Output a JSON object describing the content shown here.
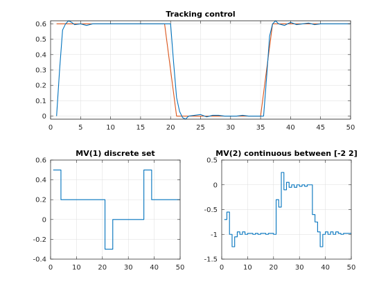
{
  "colors": {
    "blue": "#0072bd",
    "red": "#d95319",
    "axis": "#262626",
    "grid": "#dcdcdc"
  },
  "chart_data": [
    {
      "id": "tracking",
      "type": "line",
      "title": "Tracking control",
      "xlim": [
        0,
        50
      ],
      "ylim": [
        -0.02,
        0.62
      ],
      "xticks": [
        0,
        5,
        10,
        15,
        20,
        25,
        30,
        35,
        40,
        45,
        50
      ],
      "yticks": [
        0,
        0.1,
        0.2,
        0.3,
        0.4,
        0.5,
        0.6
      ],
      "grid": true,
      "series": [
        {
          "color": "red",
          "step": false,
          "x": [
            1,
            2,
            19,
            20,
            21,
            22,
            34,
            35,
            36,
            37,
            50
          ],
          "y": [
            0.6,
            0.6,
            0.6,
            0.3,
            0,
            0,
            0,
            0,
            0.3,
            0.6,
            0.6
          ]
        },
        {
          "color": "blue",
          "step": false,
          "x": [
            1,
            1.5,
            2,
            2.5,
            3,
            3.5,
            4,
            5,
            6,
            7,
            8,
            9,
            10,
            11,
            12,
            13,
            14,
            15,
            16,
            17,
            18,
            19,
            20,
            20.5,
            21,
            21.5,
            22,
            22.5,
            23,
            24,
            25,
            26,
            27,
            28,
            29,
            30,
            31,
            32,
            33,
            34,
            35,
            35.5,
            36,
            36.5,
            37,
            37.5,
            38,
            39,
            40,
            41,
            42,
            43,
            44,
            45,
            46,
            47,
            48,
            49,
            50
          ],
          "y": [
            0,
            0.3,
            0.56,
            0.6,
            0.62,
            0.61,
            0.595,
            0.6,
            0.59,
            0.6,
            0.6,
            0.6,
            0.6,
            0.6,
            0.6,
            0.6,
            0.6,
            0.6,
            0.6,
            0.6,
            0.6,
            0.6,
            0.6,
            0.35,
            0.12,
            0.03,
            -0.01,
            -0.02,
            0,
            0.005,
            0.01,
            -0.005,
            0.005,
            0.005,
            0,
            0,
            0,
            0.005,
            0,
            0,
            0,
            0,
            0.25,
            0.52,
            0.6,
            0.62,
            0.6,
            0.59,
            0.61,
            0.595,
            0.6,
            0.605,
            0.595,
            0.6,
            0.6,
            0.6,
            0.6,
            0.6,
            0.6
          ]
        }
      ]
    },
    {
      "id": "mv1",
      "type": "line",
      "title": "MV(1) discrete set",
      "xlim": [
        0,
        50
      ],
      "ylim": [
        -0.4,
        0.6
      ],
      "xticks": [
        0,
        10,
        20,
        30,
        40,
        50
      ],
      "yticks": [
        -0.4,
        -0.2,
        0,
        0.2,
        0.4,
        0.6
      ],
      "grid": true,
      "series": [
        {
          "color": "blue",
          "step": true,
          "x": [
            1,
            4,
            21,
            24,
            36,
            39,
            50
          ],
          "y": [
            0.5,
            0.2,
            -0.3,
            0,
            0.5,
            0.2,
            0.2
          ]
        }
      ]
    },
    {
      "id": "mv2",
      "type": "line",
      "title": "MV(2) continuous between [-2 2]",
      "xlim": [
        0,
        50
      ],
      "ylim": [
        -1.5,
        0.5
      ],
      "xticks": [
        0,
        10,
        20,
        30,
        40,
        50
      ],
      "yticks": [
        -1.5,
        -1,
        -0.5,
        0,
        0.5
      ],
      "grid": true,
      "series": [
        {
          "color": "blue",
          "step": true,
          "x": [
            1,
            2,
            3,
            4,
            5,
            6,
            7,
            8,
            9,
            10,
            11,
            12,
            13,
            14,
            15,
            16,
            17,
            18,
            19,
            20,
            21,
            22,
            23,
            24,
            25,
            26,
            27,
            28,
            29,
            30,
            31,
            32,
            33,
            34,
            35,
            36,
            37,
            38,
            39,
            40,
            41,
            42,
            43,
            44,
            45,
            46,
            47,
            48,
            49,
            50
          ],
          "y": [
            -0.7,
            -0.55,
            -1.0,
            -1.25,
            -1.05,
            -0.95,
            -1.0,
            -0.95,
            -1.0,
            -0.98,
            -0.98,
            -1.0,
            -0.98,
            -1.0,
            -0.98,
            -0.98,
            -1.0,
            -0.98,
            -0.98,
            -1.0,
            -0.3,
            -0.45,
            0.25,
            -0.1,
            0.05,
            -0.05,
            0.0,
            -0.05,
            0.0,
            -0.03,
            0.0,
            -0.03,
            0.0,
            0.0,
            -0.6,
            -0.75,
            -0.95,
            -1.25,
            -1.0,
            -0.95,
            -1.0,
            -0.95,
            -1.0,
            -0.95,
            -0.98,
            -1.0,
            -0.98,
            -0.98,
            -0.98,
            -0.98
          ]
        }
      ]
    }
  ]
}
